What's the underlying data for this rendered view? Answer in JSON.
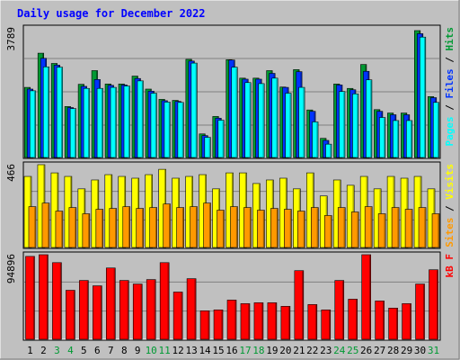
{
  "title": "Daily usage for December 2022",
  "colors": {
    "background": "#c0c0c0",
    "title": "#0000ff",
    "hits": "#009933",
    "files": "#0033ff",
    "pages": "#00ffff",
    "visits": "#ffff00",
    "sites": "#ff9900",
    "kbytes": "#ff0000",
    "weekday_label": "#000000",
    "weekend_label": "#009933"
  },
  "chart_data": [
    {
      "type": "bar",
      "panel": "hits-files-pages",
      "max_label": "3789",
      "legend": [
        "Pages",
        "Files",
        "Hits"
      ],
      "categories": [
        "1",
        "2",
        "3",
        "4",
        "5",
        "6",
        "7",
        "8",
        "9",
        "10",
        "11",
        "12",
        "13",
        "14",
        "15",
        "16",
        "17",
        "18",
        "19",
        "20",
        "21",
        "22",
        "23",
        "24",
        "25",
        "26",
        "27",
        "28",
        "29",
        "30",
        "31"
      ],
      "ylim": [
        0,
        3789
      ],
      "series": [
        {
          "name": "Hits",
          "values": [
            2050,
            3050,
            2750,
            1490,
            2140,
            2540,
            2150,
            2150,
            2380,
            2000,
            1700,
            1670,
            2870,
            690,
            1200,
            2860,
            2320,
            2320,
            2540,
            2060,
            2570,
            1390,
            560,
            2150,
            2020,
            2720,
            1400,
            1300,
            1300,
            3710,
            1780
          ]
        },
        {
          "name": "Files",
          "values": [
            2000,
            2900,
            2700,
            1460,
            2080,
            2280,
            2110,
            2120,
            2310,
            1940,
            1660,
            1640,
            2820,
            640,
            1150,
            2850,
            2290,
            2290,
            2460,
            2050,
            2510,
            1350,
            500,
            2120,
            1980,
            2520,
            1350,
            1250,
            1250,
            3620,
            1750
          ]
        },
        {
          "name": "Pages",
          "values": [
            1950,
            2650,
            2640,
            1430,
            2020,
            2020,
            2050,
            2090,
            2240,
            1880,
            1620,
            1610,
            2760,
            590,
            1090,
            2640,
            2190,
            2160,
            2320,
            1880,
            2050,
            1040,
            390,
            1930,
            1860,
            2270,
            1170,
            1080,
            1080,
            3520,
            1610
          ]
        }
      ]
    },
    {
      "type": "bar",
      "panel": "visits-sites",
      "max_label": "466",
      "legend": [
        "Sites",
        "Visits"
      ],
      "categories": [
        "1",
        "2",
        "3",
        "4",
        "5",
        "6",
        "7",
        "8",
        "9",
        "10",
        "11",
        "12",
        "13",
        "14",
        "15",
        "16",
        "17",
        "18",
        "19",
        "20",
        "21",
        "22",
        "23",
        "24",
        "25",
        "26",
        "27",
        "28",
        "29",
        "30",
        "31"
      ],
      "ylim": [
        0,
        466
      ],
      "series": [
        {
          "name": "Visits",
          "values": [
            400,
            470,
            420,
            400,
            330,
            380,
            410,
            400,
            390,
            410,
            440,
            390,
            400,
            410,
            330,
            420,
            420,
            360,
            380,
            390,
            330,
            420,
            290,
            380,
            350,
            400,
            330,
            400,
            390,
            400,
            330
          ]
        },
        {
          "name": "Sites",
          "values": [
            230,
            250,
            205,
            225,
            190,
            215,
            220,
            230,
            220,
            225,
            245,
            225,
            230,
            250,
            210,
            230,
            225,
            210,
            220,
            215,
            205,
            225,
            180,
            225,
            200,
            230,
            190,
            225,
            215,
            225,
            190
          ]
        }
      ]
    },
    {
      "type": "bar",
      "panel": "kbytes",
      "max_label": "94896",
      "legend": [
        "kB F"
      ],
      "categories": [
        "1",
        "2",
        "3",
        "4",
        "5",
        "6",
        "7",
        "8",
        "9",
        "10",
        "11",
        "12",
        "13",
        "14",
        "15",
        "16",
        "17",
        "18",
        "19",
        "20",
        "21",
        "22",
        "23",
        "24",
        "25",
        "26",
        "27",
        "28",
        "29",
        "30",
        "31"
      ],
      "ylim": [
        0,
        94896
      ],
      "series": [
        {
          "name": "kB F",
          "values": [
            93000,
            98000,
            86000,
            55000,
            66000,
            60000,
            80000,
            66000,
            62000,
            67000,
            86000,
            53000,
            68000,
            32000,
            33000,
            44000,
            40000,
            41000,
            41000,
            37000,
            77000,
            39000,
            33000,
            66000,
            45000,
            98000,
            43000,
            35000,
            40000,
            62000,
            78000
          ]
        }
      ]
    }
  ],
  "x_labels": [
    {
      "text": "1",
      "weekend": false
    },
    {
      "text": "2",
      "weekend": false
    },
    {
      "text": "3",
      "weekend": true
    },
    {
      "text": "4",
      "weekend": true
    },
    {
      "text": "5",
      "weekend": false
    },
    {
      "text": "6",
      "weekend": false
    },
    {
      "text": "7",
      "weekend": false
    },
    {
      "text": "8",
      "weekend": false
    },
    {
      "text": "9",
      "weekend": false
    },
    {
      "text": "10",
      "weekend": true
    },
    {
      "text": "11",
      "weekend": true
    },
    {
      "text": "12",
      "weekend": false
    },
    {
      "text": "13",
      "weekend": false
    },
    {
      "text": "14",
      "weekend": false
    },
    {
      "text": "15",
      "weekend": false
    },
    {
      "text": "16",
      "weekend": false
    },
    {
      "text": "17",
      "weekend": true
    },
    {
      "text": "18",
      "weekend": true
    },
    {
      "text": "19",
      "weekend": false
    },
    {
      "text": "20",
      "weekend": false
    },
    {
      "text": "21",
      "weekend": false
    },
    {
      "text": "22",
      "weekend": false
    },
    {
      "text": "23",
      "weekend": false
    },
    {
      "text": "24",
      "weekend": true
    },
    {
      "text": "25",
      "weekend": true
    },
    {
      "text": "26",
      "weekend": false
    },
    {
      "text": "27",
      "weekend": false
    },
    {
      "text": "28",
      "weekend": false
    },
    {
      "text": "29",
      "weekend": false
    },
    {
      "text": "30",
      "weekend": false
    },
    {
      "text": "31",
      "weekend": true
    }
  ]
}
